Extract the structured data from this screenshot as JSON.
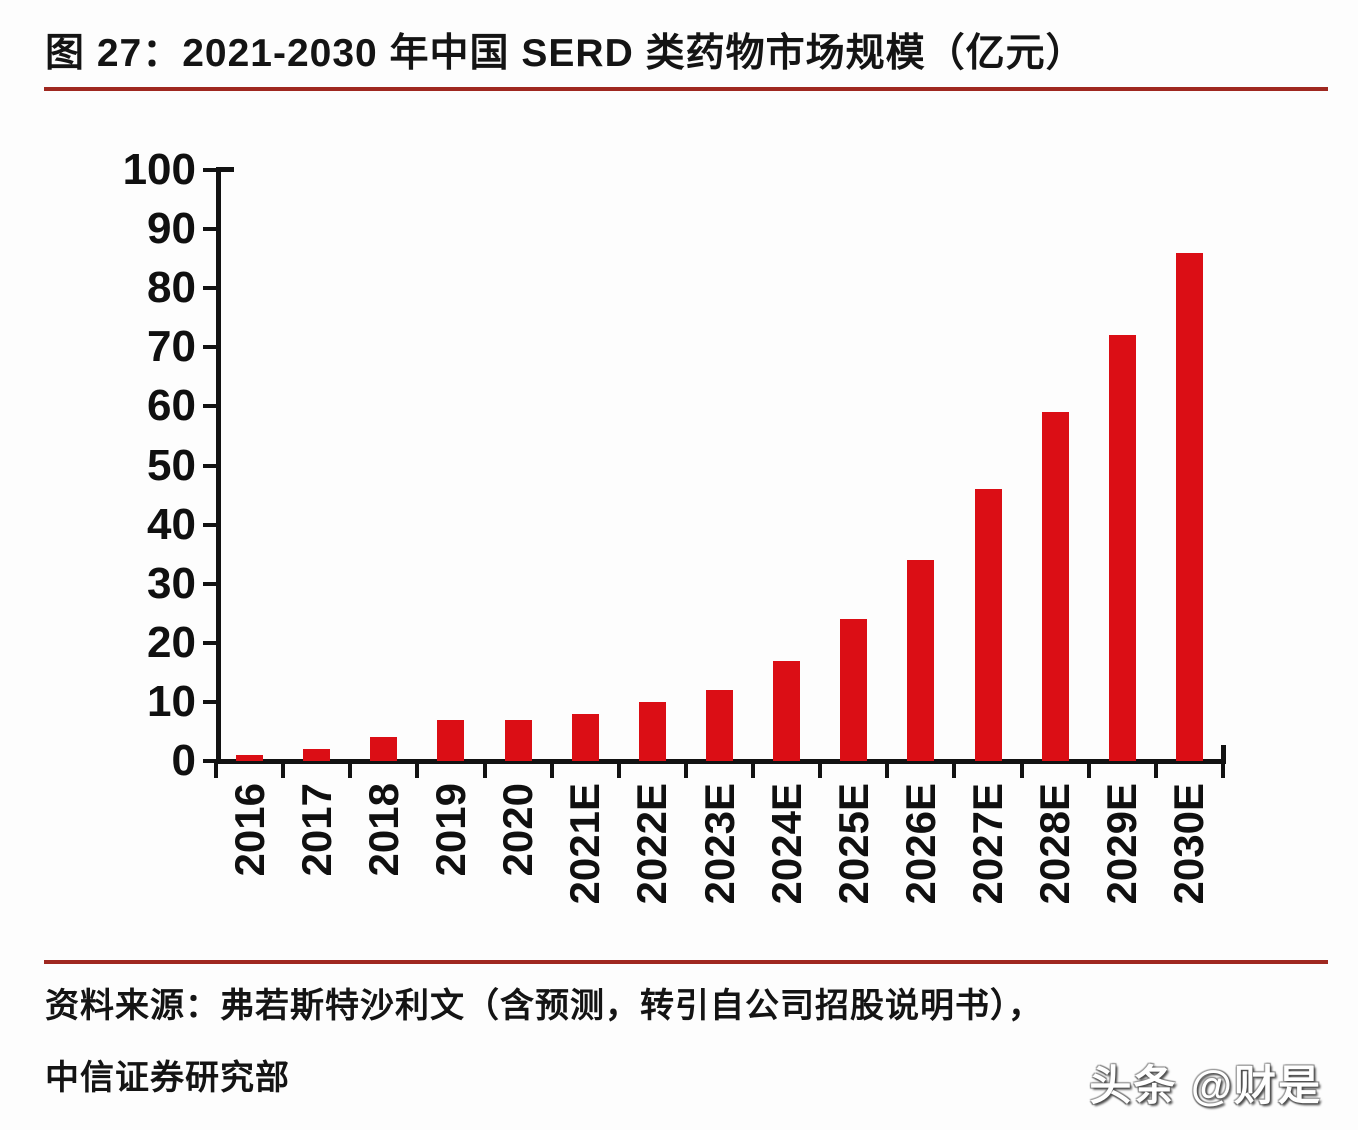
{
  "header": {
    "title": "图 27：2021-2030 年中国 SERD 类药物市场规模（亿元）"
  },
  "chart_data": {
    "type": "bar",
    "title": "2021-2030 年中国 SERD 类药物市场规模（亿元）",
    "categories": [
      "2016",
      "2017",
      "2018",
      "2019",
      "2020",
      "2021E",
      "2022E",
      "2023E",
      "2024E",
      "2025E",
      "2026E",
      "2027E",
      "2028E",
      "2029E",
      "2030E"
    ],
    "values": [
      1,
      2,
      4,
      7,
      7,
      8,
      10,
      12,
      17,
      24,
      34,
      46,
      59,
      72,
      86
    ],
    "xlabel": "",
    "ylabel": "",
    "ylim": [
      0,
      100
    ],
    "ytick_step": 10,
    "grid": false,
    "legend": "none",
    "bar_color": "#db0e15",
    "axis_color": "#121212"
  },
  "footer": {
    "source_line1": "资料来源：弗若斯特沙利文（含预测，转引自公司招股说明书），",
    "source_line2": "中信证券研究部",
    "watermark": "头条 @财是"
  },
  "colors": {
    "accent_rule": "#9f2820",
    "bar": "#db0e15"
  }
}
